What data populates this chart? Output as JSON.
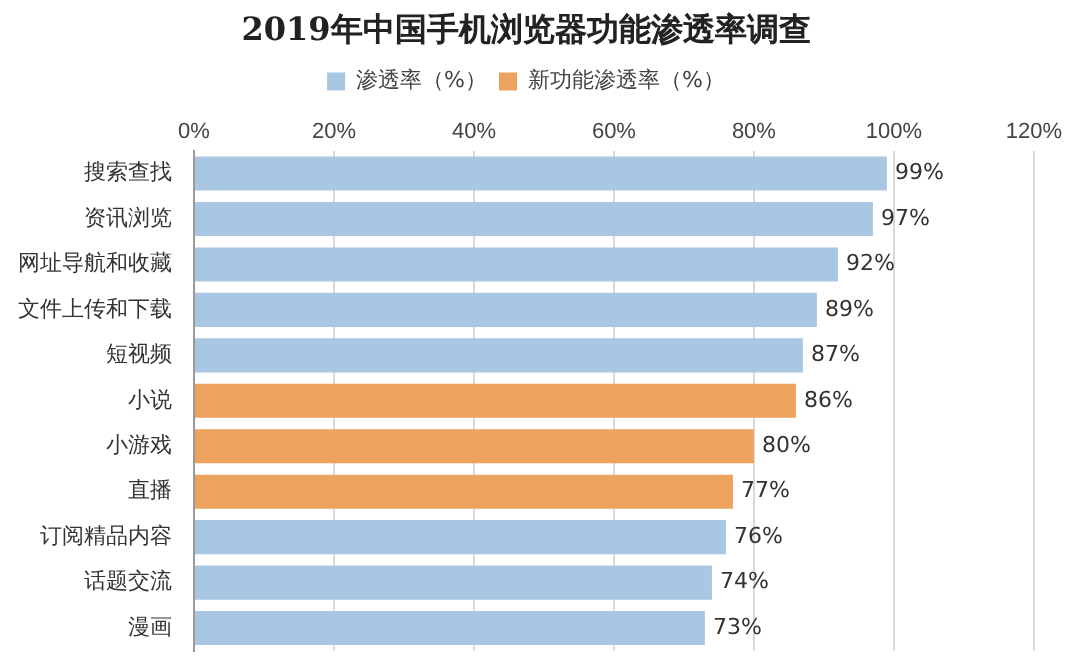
{
  "chart_data": {
    "type": "bar",
    "orientation": "horizontal",
    "title": "2019年中国手机浏览器功能渗透率调查",
    "categories": [
      "搜索查找",
      "资讯浏览",
      "网址导航和收藏",
      "文件上传和下载",
      "短视频",
      "小说",
      "小游戏",
      "直播",
      "订阅精品内容",
      "话题交流",
      "漫画"
    ],
    "series": [
      {
        "name": "渗透率（%）",
        "color": "#a9c6e3",
        "values": [
          99,
          97,
          92,
          89,
          87,
          null,
          null,
          null,
          76,
          74,
          73
        ],
        "value_labels": [
          "99%",
          "97%",
          "92%",
          "89%",
          "87%",
          null,
          null,
          null,
          "76%",
          "74%",
          "73%"
        ]
      },
      {
        "name": "新功能渗透率（%）",
        "color": "#eda35e",
        "values": [
          null,
          null,
          null,
          null,
          null,
          86,
          80,
          77,
          null,
          null,
          null
        ],
        "value_labels": [
          null,
          null,
          null,
          null,
          null,
          "86%",
          "80%",
          "77%",
          null,
          null,
          null
        ]
      }
    ],
    "xlim": [
      0,
      120
    ],
    "xticks": [
      {
        "value": 0,
        "label": "0%"
      },
      {
        "value": 20,
        "label": "20%"
      },
      {
        "value": 40,
        "label": "40%"
      },
      {
        "value": 60,
        "label": "60%"
      },
      {
        "value": 80,
        "label": "80%"
      },
      {
        "value": 100,
        "label": "100%"
      },
      {
        "value": 120,
        "label": "120%"
      }
    ],
    "grid": "x",
    "legend": "top"
  }
}
